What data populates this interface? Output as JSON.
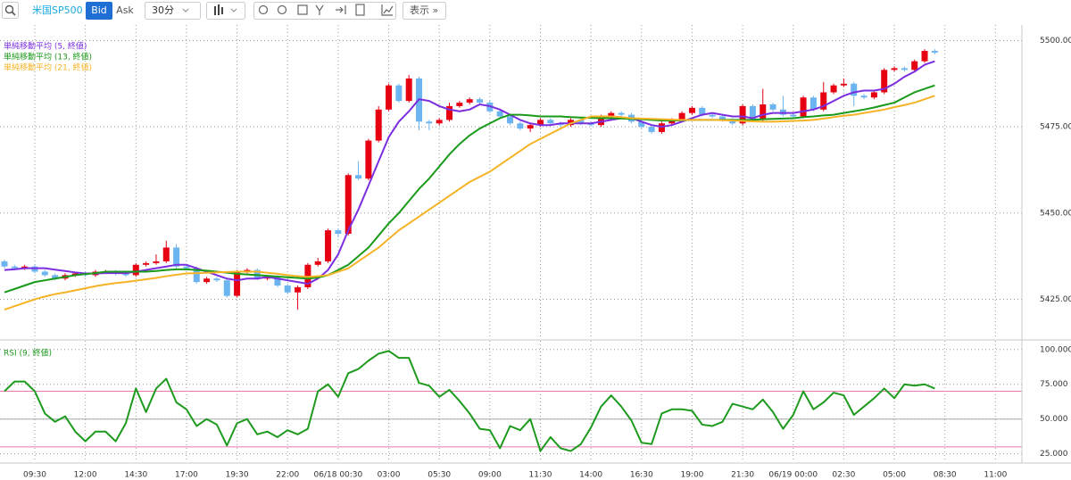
{
  "toolbar": {
    "symbol": "米国SP500",
    "bid": "Bid",
    "ask": "Ask",
    "interval": "30分",
    "view": "表示 »"
  },
  "chart_data": [
    {
      "type": "candlestick",
      "categories": [
        null,
        null,
        null,
        "09:30",
        null,
        null,
        null,
        null,
        "12:00",
        null,
        null,
        null,
        null,
        "14:30",
        null,
        null,
        null,
        null,
        "17:00",
        null,
        null,
        null,
        null,
        "19:30",
        null,
        null,
        null,
        null,
        "22:00",
        null,
        null,
        null,
        null,
        "06/18 00:30",
        null,
        null,
        null,
        null,
        "03:00",
        null,
        null,
        null,
        null,
        "05:30",
        null,
        null,
        null,
        null,
        "09:00",
        null,
        null,
        null,
        null,
        "11:30",
        null,
        null,
        null,
        null,
        "14:00",
        null,
        null,
        null,
        null,
        "16:30",
        null,
        null,
        null,
        null,
        "19:00",
        null,
        null,
        null,
        null,
        "21:30",
        null,
        null,
        null,
        null,
        "06/19 00:00",
        null,
        null,
        null,
        null,
        "02:30",
        null,
        null,
        null,
        null,
        "05:00",
        null,
        null,
        null,
        null,
        "08:30",
        null,
        null,
        null,
        null,
        "11:00"
      ],
      "open": [
        5436,
        5434.5,
        5434,
        5434.5,
        5433,
        5432,
        5431,
        5432,
        5432.5,
        5432,
        5433,
        5433,
        5432.5,
        5432,
        5435,
        5435.5,
        5436,
        5440,
        5434.5,
        5434,
        5430,
        5431,
        5430.5,
        5426,
        5433,
        5433.5,
        5431,
        5431.5,
        5429,
        5427,
        5428.5,
        5435,
        5436,
        5445,
        5444,
        5461,
        5460,
        5471,
        5480,
        5487,
        5482.5,
        5489,
        5476.5,
        5476,
        5477,
        5481,
        5482,
        5483,
        5482,
        5479.5,
        5478,
        5476,
        5474.5,
        5475.5,
        5477,
        5476,
        5475.5,
        5477,
        5476,
        5475.5,
        5478,
        5479,
        5478.5,
        5476.5,
        5475,
        5473.5,
        5476,
        5477,
        5479,
        5480.5,
        5478.5,
        5478,
        5477,
        5476,
        5481,
        5477,
        5481.5,
        5480,
        5478.5,
        5478,
        5483.5,
        5480,
        5485,
        5487,
        5487.5,
        5484,
        5483.5,
        5485,
        5491.5,
        5492,
        5491.5,
        5494,
        5497,
        null,
        null,
        null,
        null,
        null,
        null
      ],
      "high": [
        5436.5,
        5435,
        5435,
        5435,
        5433.5,
        5432.5,
        5432.5,
        5433,
        5433,
        5433.5,
        5433.5,
        5433.5,
        5433,
        5435.5,
        5436,
        5438,
        5442,
        5441,
        5435,
        5434.5,
        5431.5,
        5431.5,
        5431,
        5433.5,
        5434,
        5434,
        5432,
        5432,
        5429.5,
        5429,
        5435.5,
        5437,
        5445.5,
        5445.5,
        5461.5,
        5465,
        5471.5,
        5481,
        5487.5,
        5487.5,
        5490,
        5489.5,
        5477,
        5477.5,
        5482,
        5482.5,
        5483.5,
        5483.5,
        5482.5,
        5480,
        5478.5,
        5476.5,
        5476,
        5477.5,
        5477.5,
        5476.5,
        5477.5,
        5477.5,
        5476.5,
        5478.5,
        5479.5,
        5479.5,
        5479,
        5477,
        5475.5,
        5476.5,
        5477.5,
        5479.5,
        5481,
        5481,
        5479,
        5478.5,
        5477.5,
        5481.5,
        5481.5,
        5486,
        5482,
        5484,
        5479,
        5484,
        5484,
        5488,
        5487.5,
        5489,
        5488,
        5484.5,
        5485.5,
        5492,
        5492.5,
        5492.5,
        5494.5,
        5497.5,
        5497.5,
        null,
        null,
        null,
        null,
        null,
        null
      ],
      "low": [
        5434,
        5433.5,
        5433.5,
        5432.5,
        5431.5,
        5430.5,
        5430.5,
        5431.5,
        5431.5,
        5431.5,
        5432.5,
        5432,
        5431.5,
        5431.5,
        5434.5,
        5435,
        5435.5,
        5434,
        5433.5,
        5429.5,
        5429.5,
        5430,
        5425.5,
        5425.5,
        5432.5,
        5430.5,
        5430.5,
        5428.5,
        5426.5,
        5422,
        5428,
        5434.5,
        5435.5,
        5443,
        5443.5,
        5459.5,
        5459.5,
        5470.5,
        5479.5,
        5482,
        5482,
        5474,
        5474,
        5475.5,
        5476.5,
        5480.5,
        5481.5,
        5481.5,
        5479,
        5477.5,
        5475.5,
        5474,
        5473.5,
        5475,
        5475.5,
        5475,
        5475,
        5475.5,
        5475,
        5475,
        5477.5,
        5478,
        5476,
        5474.5,
        5473,
        5473,
        5475.5,
        5476.5,
        5478.5,
        5478,
        5477.5,
        5476.5,
        5475.5,
        5475.5,
        5476.5,
        5476.5,
        5479.5,
        5478,
        5477.5,
        5477.5,
        5479.5,
        5479.5,
        5484.5,
        5486.5,
        5481,
        5483,
        5483,
        5484.5,
        5491,
        5491,
        5491,
        5493.5,
        5496,
        null,
        null,
        null,
        null,
        null,
        null
      ],
      "close": [
        5434.5,
        5434,
        5434.5,
        5433,
        5432,
        5431,
        5432,
        5432.5,
        5432,
        5433,
        5433,
        5432.5,
        5432,
        5435,
        5435.5,
        5436,
        5440,
        5434.5,
        5434,
        5430,
        5431,
        5430.5,
        5426,
        5433,
        5433.5,
        5431,
        5431.5,
        5429,
        5427,
        5428.5,
        5435,
        5436,
        5445,
        5444,
        5461,
        5460,
        5471,
        5480,
        5487,
        5482.5,
        5489,
        5476.5,
        5476,
        5477,
        5481,
        5482,
        5483,
        5482,
        5479.5,
        5478,
        5476,
        5474.5,
        5475.5,
        5477,
        5476,
        5475.5,
        5477,
        5476,
        5475.5,
        5478,
        5479,
        5478.5,
        5476.5,
        5475,
        5473.5,
        5476,
        5477,
        5479,
        5480.5,
        5478.5,
        5478,
        5477,
        5476,
        5481,
        5477,
        5481.5,
        5480,
        5478.5,
        5478,
        5483.5,
        5480,
        5485,
        5487,
        5487.5,
        5484,
        5483.5,
        5485,
        5491.5,
        5492,
        5491.5,
        5494,
        5497,
        5496.5,
        null,
        null,
        null,
        null,
        null,
        null
      ],
      "up_color": "#e60012",
      "down_color": "#6cb4f0",
      "series": [
        {
          "name": "単純移動平均 (5, 終値)",
          "color": "#7b2ee0",
          "values": [
            5433.5,
            5433.7,
            5434,
            5434,
            5434,
            5433.6,
            5433.2,
            5432.8,
            5432.5,
            5432.5,
            5432.6,
            5432.6,
            5432.6,
            5433,
            5433.5,
            5434,
            5434.5,
            5435,
            5435,
            5434,
            5433,
            5432,
            5431,
            5430.5,
            5431,
            5431,
            5431.5,
            5431,
            5430.5,
            5430,
            5429.5,
            5431,
            5433.5,
            5438,
            5445,
            5451,
            5458,
            5465,
            5472,
            5476.5,
            5479.5,
            5483,
            5482.5,
            5481,
            5480,
            5479.5,
            5480,
            5481.5,
            5481,
            5480,
            5478.5,
            5477,
            5476,
            5475.5,
            5475.5,
            5476,
            5476,
            5476,
            5476,
            5476.5,
            5477,
            5477.5,
            5477.5,
            5476.5,
            5475.5,
            5475,
            5475.5,
            5476.5,
            5477.5,
            5478.5,
            5479,
            5478.5,
            5478,
            5478,
            5477.5,
            5478.5,
            5479,
            5479,
            5479,
            5479.5,
            5480,
            5481,
            5482.5,
            5484,
            5485,
            5485.5,
            5485.5,
            5486,
            5487.5,
            5489.5,
            5491,
            5493,
            5494,
            null,
            null,
            null,
            null,
            null,
            null
          ]
        },
        {
          "name": "単純移動平均 (13, 終値)",
          "color": "#1a9a1a",
          "values": [
            5427,
            5428,
            5429,
            5430,
            5430.5,
            5431,
            5431.5,
            5432,
            5432.3,
            5432.6,
            5433,
            5433,
            5433,
            5433,
            5433,
            5433.2,
            5433.5,
            5433.7,
            5433.7,
            5433.5,
            5433.3,
            5433,
            5432.7,
            5432.4,
            5432.2,
            5432,
            5431.8,
            5431.6,
            5431.4,
            5431.2,
            5431,
            5431.3,
            5432,
            5433.5,
            5435,
            5437.5,
            5440,
            5443.5,
            5447,
            5450,
            5453.5,
            5457,
            5460,
            5463.5,
            5467,
            5470,
            5472.5,
            5474.5,
            5476,
            5477.5,
            5478.5,
            5478.5,
            5478.3,
            5478,
            5478,
            5478,
            5477.8,
            5477.7,
            5477.6,
            5477.5,
            5477.5,
            5477.4,
            5477.3,
            5477.2,
            5477,
            5476.8,
            5476.8,
            5476.9,
            5477,
            5477,
            5477,
            5477,
            5477,
            5477,
            5477,
            5477.2,
            5477.3,
            5477.4,
            5477.5,
            5477.8,
            5478,
            5478.3,
            5478.5,
            5479,
            5479.5,
            5480,
            5480.6,
            5481.3,
            5482,
            5483.5,
            5485,
            5486,
            5487,
            null,
            null,
            null,
            null,
            null,
            null
          ]
        },
        {
          "name": "単純移動平均 (21, 終値)",
          "color": "#f5b325",
          "values": [
            5422,
            5423,
            5424,
            5425,
            5425.8,
            5426.5,
            5427,
            5427.6,
            5428.2,
            5428.8,
            5429.3,
            5429.7,
            5430,
            5430.4,
            5430.8,
            5431.2,
            5431.7,
            5432.1,
            5432.5,
            5432.6,
            5432.7,
            5432.8,
            5432.9,
            5433,
            5433,
            5433,
            5432.7,
            5432.4,
            5432,
            5431.7,
            5431.5,
            5431.7,
            5432,
            5433,
            5434,
            5436,
            5438,
            5440,
            5442.5,
            5445,
            5447,
            5449,
            5451,
            5453,
            5455,
            5457,
            5459,
            5460.5,
            5462,
            5464,
            5466,
            5468,
            5470,
            5471.5,
            5473,
            5474.5,
            5476,
            5477,
            5478,
            5478,
            5478,
            5477.8,
            5477.5,
            5477.4,
            5477.3,
            5477.2,
            5477.1,
            5477,
            5477,
            5477,
            5477,
            5476.9,
            5476.8,
            5476.7,
            5476.6,
            5476.5,
            5476.5,
            5476.6,
            5476.7,
            5476.8,
            5477,
            5477.4,
            5477.8,
            5478.2,
            5478.5,
            5479,
            5479.5,
            5480,
            5480.7,
            5481.3,
            5482,
            5483,
            5484,
            null,
            null,
            null,
            null,
            null,
            null
          ]
        }
      ],
      "ylim": [
        5414,
        5504
      ],
      "yticks": [
        {
          "value": 5500,
          "label": "5500.00"
        },
        {
          "value": 5475,
          "label": "5475.00"
        },
        {
          "value": 5450,
          "label": "5450.00"
        },
        {
          "value": 5425,
          "label": "5425.00"
        }
      ],
      "grid": true
    },
    {
      "type": "line",
      "series": [
        {
          "name": "RSI (9, 終値)",
          "color": "#1e9a1e",
          "values": [
            70,
            77,
            77,
            70,
            54,
            48,
            52,
            41,
            34,
            41,
            41,
            34,
            47,
            72,
            55,
            72,
            79,
            62,
            57,
            45,
            50,
            46,
            31,
            47,
            50,
            39,
            41,
            37,
            42,
            39,
            43,
            70,
            75,
            66,
            83,
            86,
            92,
            97,
            99,
            94,
            94,
            76,
            74,
            66,
            71,
            63,
            54,
            43,
            42,
            29,
            45,
            42,
            50,
            27,
            37,
            29,
            27,
            32,
            44,
            59,
            67,
            59,
            49,
            33,
            32,
            54,
            57,
            57,
            56,
            46,
            45,
            48,
            61,
            59,
            57,
            64,
            55,
            43,
            53,
            70,
            57,
            62,
            69,
            67,
            53,
            59,
            65,
            72,
            65,
            75,
            74,
            75,
            72,
            null,
            null,
            null,
            null,
            null,
            null
          ]
        }
      ],
      "levels": [
        {
          "value": 70,
          "color": "#e878b4"
        },
        {
          "value": 50,
          "color": "#aaaaaa"
        },
        {
          "value": 30,
          "color": "#e878b4"
        }
      ],
      "ylim": [
        19,
        105
      ],
      "yticks": [
        {
          "value": 100,
          "label": "100.000"
        },
        {
          "value": 75,
          "label": "75.000"
        },
        {
          "value": 50,
          "label": "50.000"
        },
        {
          "value": 25,
          "label": "25.000"
        }
      ],
      "grid": true
    }
  ]
}
